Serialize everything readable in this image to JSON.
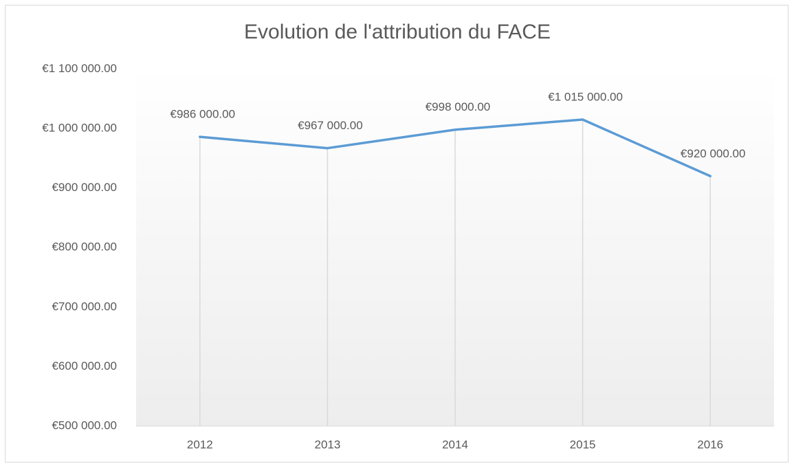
{
  "chart_data": {
    "type": "line",
    "title": "Evolution de l'attribution du FACE",
    "categories": [
      "2012",
      "2013",
      "2014",
      "2015",
      "2016"
    ],
    "series": [
      {
        "name": "FACE",
        "color": "#5b9bd5",
        "values": [
          986000,
          967000,
          998000,
          1015000,
          920000
        ],
        "value_labels": [
          "€986 000.00",
          "€967 000.00",
          "€998 000.00",
          "€1 015 000.00",
          "€920 000.00"
        ]
      }
    ],
    "ylim": [
      500000,
      1100000
    ],
    "yticks": [
      {
        "value": 500000,
        "label": "€500 000.00"
      },
      {
        "value": 600000,
        "label": "€600 000.00"
      },
      {
        "value": 700000,
        "label": "€700 000.00"
      },
      {
        "value": 800000,
        "label": "€800 000.00"
      },
      {
        "value": 900000,
        "label": "€900 000.00"
      },
      {
        "value": 1000000,
        "label": "€1 000 000.00"
      },
      {
        "value": 1100000,
        "label": "€1 100 000.00"
      }
    ],
    "drop_lines": true,
    "legend": false
  }
}
